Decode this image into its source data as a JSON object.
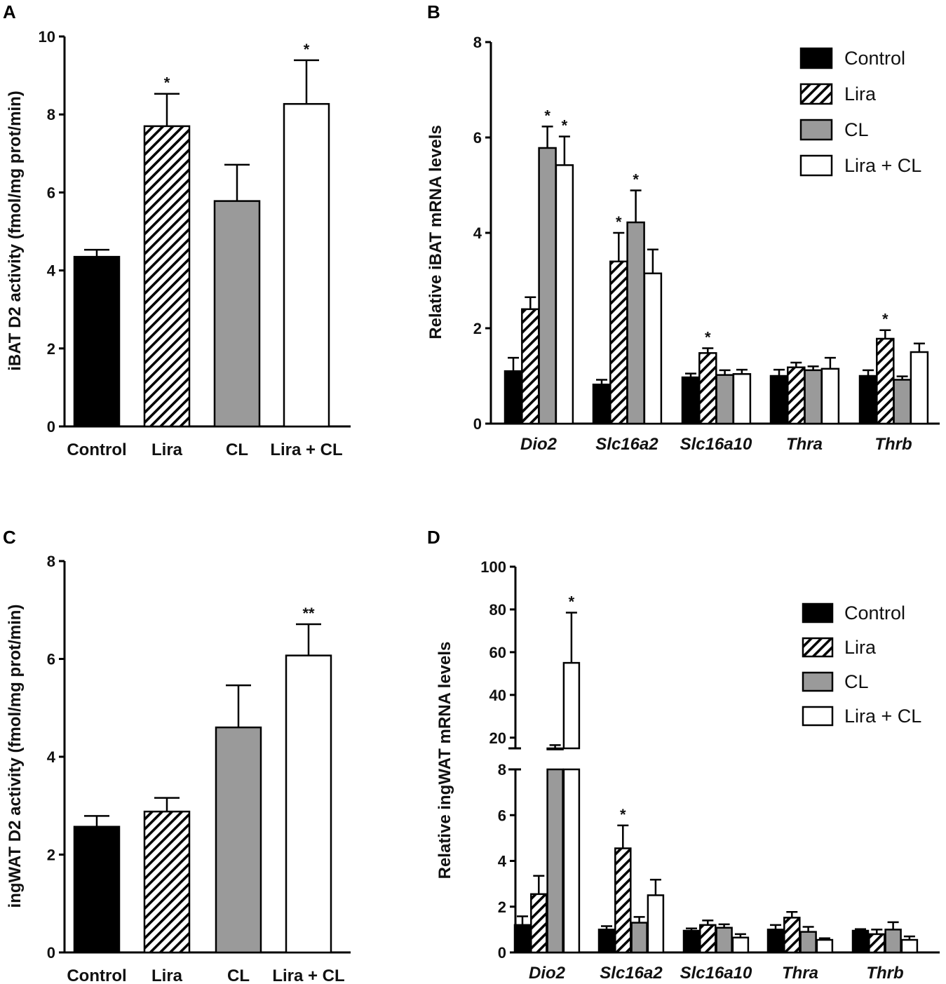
{
  "colors": {
    "control": "#000000",
    "lira": "#ffffff",
    "cl": "#9a9a9a",
    "liracl": "#ffffff",
    "stroke": "#000000"
  },
  "chart_data": [
    {
      "panel": "A",
      "type": "bar",
      "ylabel": "iBAT D2 activity (fmol/mg prot/min)",
      "ylim": [
        0,
        10
      ],
      "yticks": [
        0,
        2,
        4,
        6,
        8,
        10
      ],
      "categories": [
        "Control",
        "Lira",
        "CL",
        "Lira + CL"
      ],
      "values": [
        4.35,
        7.7,
        5.78,
        8.27
      ],
      "errors": [
        0.18,
        0.83,
        0.93,
        1.12
      ],
      "fills": [
        "control",
        "lira",
        "cl",
        "liracl"
      ],
      "patterns": [
        "solid",
        "hatch",
        "solid",
        "solid"
      ],
      "sig": [
        "",
        "*",
        "",
        "*"
      ]
    },
    {
      "panel": "B",
      "type": "bar",
      "ylabel": "Relative iBAT mRNA levels",
      "ylim": [
        0,
        8
      ],
      "yticks": [
        0,
        2,
        4,
        6,
        8
      ],
      "categories": [
        "Dio2",
        "Slc16a2",
        "Slc16a10",
        "Thra",
        "Thrb"
      ],
      "legend": [
        "Control",
        "Lira",
        "CL",
        "Lira + CL"
      ],
      "series": [
        {
          "name": "Control",
          "values": [
            1.1,
            0.82,
            0.97,
            1.0,
            1.0
          ],
          "errors": [
            0.28,
            0.1,
            0.08,
            0.13,
            0.12
          ],
          "sig": [
            "",
            "",
            "",
            "",
            ""
          ]
        },
        {
          "name": "Lira",
          "values": [
            2.4,
            3.4,
            1.48,
            1.18,
            1.78
          ],
          "errors": [
            0.25,
            0.6,
            0.1,
            0.1,
            0.18
          ],
          "sig": [
            "",
            "*",
            "*",
            "",
            "*"
          ]
        },
        {
          "name": "CL",
          "values": [
            5.78,
            4.22,
            1.02,
            1.12,
            0.92
          ],
          "errors": [
            0.45,
            0.67,
            0.1,
            0.08,
            0.07
          ],
          "sig": [
            "*",
            "*",
            "",
            "",
            ""
          ]
        },
        {
          "name": "Lira + CL",
          "values": [
            5.42,
            3.15,
            1.04,
            1.15,
            1.5
          ],
          "errors": [
            0.6,
            0.5,
            0.09,
            0.23,
            0.18
          ],
          "sig": [
            "*",
            "",
            "",
            "",
            ""
          ]
        }
      ]
    },
    {
      "panel": "C",
      "type": "bar",
      "ylabel": "ingWAT D2 activity (fmol/mg prot/min)",
      "ylim": [
        0,
        8
      ],
      "yticks": [
        0,
        2,
        4,
        6,
        8
      ],
      "categories": [
        "Control",
        "Lira",
        "CL",
        "Lira + CL"
      ],
      "values": [
        2.57,
        2.88,
        4.6,
        6.07
      ],
      "errors": [
        0.22,
        0.28,
        0.86,
        0.64
      ],
      "fills": [
        "control",
        "lira",
        "cl",
        "liracl"
      ],
      "patterns": [
        "solid",
        "hatch",
        "solid",
        "solid"
      ],
      "sig": [
        "",
        "",
        "",
        "**"
      ]
    },
    {
      "panel": "D",
      "type": "bar",
      "ylabel": "Relative ingWAT mRNA levels",
      "ylim_lower": [
        0,
        8
      ],
      "yticks_lower": [
        0,
        2,
        4,
        6,
        8
      ],
      "ylim_upper": [
        15,
        100
      ],
      "yticks_upper": [
        20,
        40,
        60,
        80,
        100
      ],
      "categories": [
        "Dio2",
        "Slc16a2",
        "Slc16a10",
        "Thra",
        "Thrb"
      ],
      "legend": [
        "Control",
        "Lira",
        "CL",
        "Lira + CL"
      ],
      "series": [
        {
          "name": "Control",
          "values": [
            1.2,
            1.0,
            0.95,
            1.0,
            0.95
          ],
          "errors": [
            0.38,
            0.15,
            0.1,
            0.2,
            0.07
          ],
          "sig": [
            "",
            "",
            "",
            "",
            ""
          ]
        },
        {
          "name": "Lira",
          "values": [
            2.55,
            4.55,
            1.2,
            1.52,
            0.8
          ],
          "errors": [
            0.8,
            1.0,
            0.2,
            0.25,
            0.2
          ],
          "sig": [
            "",
            "*",
            "",
            "",
            ""
          ]
        },
        {
          "name": "CL",
          "values": [
            14.5,
            1.3,
            1.08,
            0.9,
            1.0
          ],
          "errors": [
            2.0,
            0.25,
            0.15,
            0.22,
            0.32
          ],
          "sig": [
            "",
            "",
            "",
            "",
            ""
          ]
        },
        {
          "name": "Lira + CL",
          "values": [
            55,
            2.5,
            0.65,
            0.55,
            0.55
          ],
          "errors": [
            23.5,
            0.68,
            0.15,
            0.07,
            0.15
          ],
          "sig": [
            "*",
            "",
            "",
            "",
            ""
          ]
        }
      ]
    }
  ]
}
